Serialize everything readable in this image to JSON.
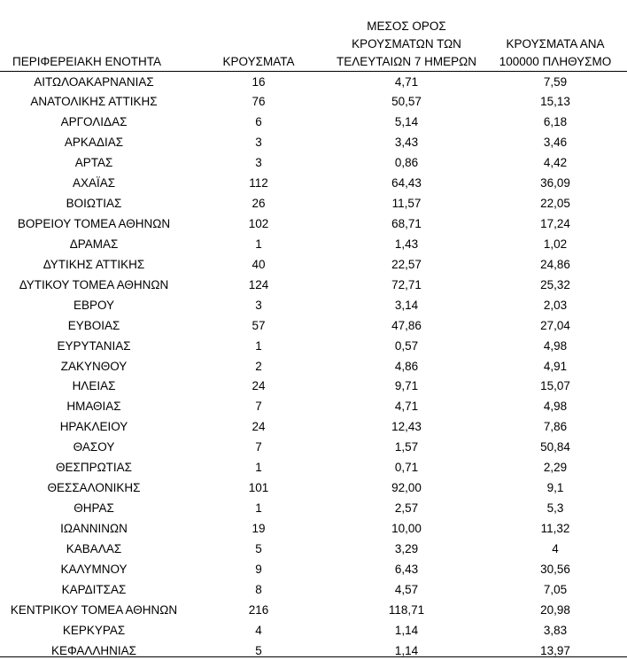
{
  "table": {
    "header": [
      [
        "ΠΕΡΙΦΕΡΕΙΑΚΗ ΕΝΟΤΗΤΑ"
      ],
      [
        "ΚΡΟΥΣΜΑΤΑ"
      ],
      [
        "ΜΕΣΟΣ ΟΡΟΣ",
        "ΚΡΟΥΣΜΑΤΩΝ ΤΩΝ",
        "ΤΕΛΕΥΤΑΙΩΝ 7 ΗΜΕΡΩΝ"
      ],
      [
        "ΚΡΟΥΣΜΑΤΑ ΑΝΑ",
        "100000 ΠΛΗΘΥΣΜΟ"
      ]
    ],
    "rows": [
      [
        "ΑΙΤΩΛΟΑΚΑΡΝΑΝΙΑΣ",
        "16",
        "4,71",
        "7,59"
      ],
      [
        "ΑΝΑΤΟΛΙΚΗΣ ΑΤΤΙΚΗΣ",
        "76",
        "50,57",
        "15,13"
      ],
      [
        "ΑΡΓΟΛΙΔΑΣ",
        "6",
        "5,14",
        "6,18"
      ],
      [
        "ΑΡΚΑΔΙΑΣ",
        "3",
        "3,43",
        "3,46"
      ],
      [
        "ΑΡΤΑΣ",
        "3",
        "0,86",
        "4,42"
      ],
      [
        "ΑΧΑΪΑΣ",
        "112",
        "64,43",
        "36,09"
      ],
      [
        "ΒΟΙΩΤΙΑΣ",
        "26",
        "11,57",
        "22,05"
      ],
      [
        "ΒΟΡΕΙΟΥ ΤΟΜΕΑ ΑΘΗΝΩΝ",
        "102",
        "68,71",
        "17,24"
      ],
      [
        "ΔΡΑΜΑΣ",
        "1",
        "1,43",
        "1,02"
      ],
      [
        "ΔΥΤΙΚΗΣ ΑΤΤΙΚΗΣ",
        "40",
        "22,57",
        "24,86"
      ],
      [
        "ΔΥΤΙΚΟΥ ΤΟΜΕΑ ΑΘΗΝΩΝ",
        "124",
        "72,71",
        "25,32"
      ],
      [
        "ΕΒΡΟΥ",
        "3",
        "3,14",
        "2,03"
      ],
      [
        "ΕΥΒΟΙΑΣ",
        "57",
        "47,86",
        "27,04"
      ],
      [
        "ΕΥΡΥΤΑΝΙΑΣ",
        "1",
        "0,57",
        "4,98"
      ],
      [
        "ΖΑΚΥΝΘΟΥ",
        "2",
        "4,86",
        "4,91"
      ],
      [
        "ΗΛΕΙΑΣ",
        "24",
        "9,71",
        "15,07"
      ],
      [
        "ΗΜΑΘΙΑΣ",
        "7",
        "4,71",
        "4,98"
      ],
      [
        "ΗΡΑΚΛΕΙΟΥ",
        "24",
        "12,43",
        "7,86"
      ],
      [
        "ΘΑΣΟΥ",
        "7",
        "1,57",
        "50,84"
      ],
      [
        "ΘΕΣΠΡΩΤΙΑΣ",
        "1",
        "0,71",
        "2,29"
      ],
      [
        "ΘΕΣΣΑΛΟΝΙΚΗΣ",
        "101",
        "92,00",
        "9,1"
      ],
      [
        "ΘΗΡΑΣ",
        "1",
        "2,57",
        "5,3"
      ],
      [
        "ΙΩΑΝΝΙΝΩΝ",
        "19",
        "10,00",
        "11,32"
      ],
      [
        "ΚΑΒΑΛΑΣ",
        "5",
        "3,29",
        "4"
      ],
      [
        "ΚΑΛΥΜΝΟΥ",
        "9",
        "6,43",
        "30,56"
      ],
      [
        "ΚΑΡΔΙΤΣΑΣ",
        "8",
        "4,57",
        "7,05"
      ],
      [
        "ΚΕΝΤΡΙΚΟΥ ΤΟΜΕΑ ΑΘΗΝΩΝ",
        "216",
        "118,71",
        "20,98"
      ],
      [
        "ΚΕΡΚΥΡΑΣ",
        "4",
        "1,14",
        "3,83"
      ],
      [
        "ΚΕΦΑΛΛΗΝΙΑΣ",
        "5",
        "1,14",
        "13,97"
      ]
    ]
  }
}
